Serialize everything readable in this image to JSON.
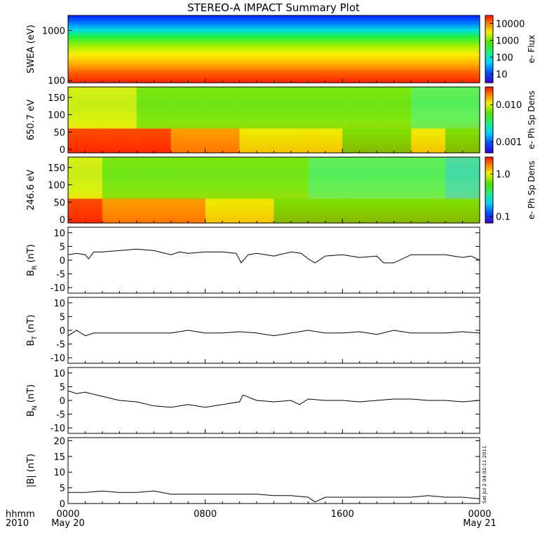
{
  "title": "STEREO-A IMPACT Summary Plot",
  "time_axis": {
    "corner_top": "hhmm",
    "corner_bottom": "2010",
    "ticks": [
      {
        "label": "0000",
        "sub": "May 20",
        "hour": 0
      },
      {
        "label": "0800",
        "sub": "",
        "hour": 8
      },
      {
        "label": "1600",
        "sub": "",
        "hour": 16
      },
      {
        "label": "0000",
        "sub": "May 21",
        "hour": 24
      }
    ],
    "range_hours": [
      0,
      24
    ]
  },
  "stamp": "Sat Jul  2 04:02:11 2011",
  "spectrogram_panels": [
    {
      "id": "swea",
      "ylabel": "SWEA (eV)",
      "ytick_labels": [
        "1000",
        "100"
      ],
      "ytick_values": [
        1000,
        100
      ],
      "yscale": "log",
      "ylim": [
        90,
        2000
      ],
      "colorbar_label": "e- Flux",
      "colorbar_ticks": [
        "10000",
        "1000",
        "100",
        "10"
      ],
      "colorbar_values": [
        10000,
        1000,
        100,
        10
      ],
      "colorbar_range": [
        3,
        30000
      ]
    },
    {
      "id": "pad650",
      "ylabel": "650.7 eV",
      "ytick_labels": [
        "150",
        "100",
        "50",
        "0"
      ],
      "ytick_values": [
        150,
        100,
        50,
        0
      ],
      "yscale": "linear",
      "ylim": [
        -10,
        180
      ],
      "colorbar_label": "e- Ph Sp Dens",
      "colorbar_ticks": [
        "0.010",
        "0.001"
      ],
      "colorbar_values": [
        0.01,
        0.001
      ],
      "colorbar_range": [
        0.0005,
        0.03
      ]
    },
    {
      "id": "pad246",
      "ylabel": "246.6 eV",
      "ytick_labels": [
        "150",
        "100",
        "50",
        "0"
      ],
      "ytick_values": [
        150,
        100,
        50,
        0
      ],
      "yscale": "linear",
      "ylim": [
        -10,
        180
      ],
      "colorbar_label": "e- Ph Sp Dens",
      "colorbar_ticks": [
        "1.0",
        "0.1"
      ],
      "colorbar_values": [
        1.0,
        0.1
      ],
      "colorbar_range": [
        0.07,
        2.5
      ]
    }
  ],
  "chart_data": [
    {
      "type": "heatmap",
      "panel": "swea",
      "ylabel": "SWEA (eV)",
      "colorbar": "e- Flux",
      "energy_profile": [
        {
          "energy_eV": 100,
          "flux": 6000
        },
        {
          "energy_eV": 200,
          "flux": 2000
        },
        {
          "energy_eV": 400,
          "flux": 400
        },
        {
          "energy_eV": 700,
          "flux": 100
        },
        {
          "energy_eV": 1000,
          "flux": 40
        },
        {
          "energy_eV": 1500,
          "flux": 8
        },
        {
          "energy_eV": 2000,
          "flux": 4
        }
      ]
    },
    {
      "type": "heatmap",
      "panel": "pad650",
      "ylabel": "650.7 eV",
      "colorbar": "e- Ph Sp Dens",
      "x_hours": [
        0,
        2,
        4,
        6,
        8,
        10,
        12,
        14,
        16,
        18,
        20,
        22,
        24
      ],
      "low_angle_density": [
        0.025,
        0.02,
        0.02,
        0.018,
        0.012,
        0.008,
        0.006,
        0.006,
        0.005,
        0.005,
        0.006,
        0.005,
        0.004
      ],
      "high_angle_density": [
        0.008,
        0.006,
        0.005,
        0.005,
        0.004,
        0.004,
        0.004,
        0.004,
        0.004,
        0.004,
        0.003,
        0.003,
        0.004
      ]
    },
    {
      "type": "heatmap",
      "panel": "pad246",
      "ylabel": "246.6 eV",
      "colorbar": "e- Ph Sp Dens",
      "x_hours": [
        0,
        2,
        4,
        6,
        8,
        10,
        12,
        14,
        16,
        18,
        20,
        22,
        24
      ],
      "low_angle_density": [
        1.8,
        1.5,
        1.4,
        1.3,
        0.8,
        0.6,
        0.5,
        0.5,
        0.45,
        0.45,
        0.5,
        0.45,
        0.4
      ],
      "high_angle_density": [
        0.6,
        0.45,
        0.4,
        0.4,
        0.35,
        0.35,
        0.35,
        0.33,
        0.33,
        0.33,
        0.3,
        0.2,
        0.3
      ]
    },
    {
      "type": "line",
      "panel": "br",
      "ylabel_main": "B",
      "ylabel_sub": "R",
      "ylabel_unit": "(nT)",
      "ylim": [
        -12,
        12
      ],
      "yticks": [
        10,
        5,
        0,
        -5,
        -10
      ],
      "x_hours": [
        0,
        0.5,
        1,
        1.2,
        1.5,
        2,
        3,
        4,
        5,
        6,
        6.5,
        7,
        8,
        9,
        9.8,
        10.1,
        10.5,
        11,
        12,
        13,
        13.6,
        14,
        14.4,
        15,
        16,
        17,
        18,
        18.4,
        19,
        20,
        21,
        22,
        23,
        23.5,
        24
      ],
      "values": [
        2,
        2.5,
        2,
        0.5,
        3,
        3,
        3.5,
        4,
        3.5,
        2,
        3,
        2.5,
        3,
        3,
        2.5,
        -1,
        2,
        2.5,
        1.5,
        3,
        2.5,
        0.5,
        -1,
        1.5,
        2,
        1,
        1.5,
        -1,
        -1,
        2,
        2,
        2,
        1,
        1.5,
        0
      ]
    },
    {
      "type": "line",
      "panel": "bt",
      "ylabel_main": "B",
      "ylabel_sub": "T",
      "ylabel_unit": "(nT)",
      "ylim": [
        -12,
        12
      ],
      "yticks": [
        10,
        5,
        0,
        -5,
        -10
      ],
      "x_hours": [
        0,
        0.5,
        1,
        1.5,
        2,
        3,
        4,
        5,
        6,
        7,
        8,
        9,
        10,
        11,
        12,
        13,
        14,
        15,
        16,
        17,
        18,
        19,
        20,
        21,
        22,
        23,
        24
      ],
      "values": [
        -2,
        0,
        -2,
        -1,
        -1,
        -1,
        -1,
        -1,
        -1,
        0,
        -1,
        -1,
        -0.5,
        -1,
        -2,
        -1,
        0,
        -1,
        -1,
        -0.5,
        -1.5,
        0,
        -1,
        -1,
        -1,
        -0.5,
        -1
      ]
    },
    {
      "type": "line",
      "panel": "bn",
      "ylabel_main": "B",
      "ylabel_sub": "N",
      "ylabel_unit": "(nT)",
      "ylim": [
        -12,
        12
      ],
      "yticks": [
        10,
        5,
        0,
        -5,
        -10
      ],
      "x_hours": [
        0,
        0.5,
        1,
        2,
        3,
        4,
        5,
        6,
        7,
        8,
        9,
        10,
        10.2,
        11,
        12,
        13,
        13.5,
        14,
        15,
        16,
        17,
        18,
        19,
        20,
        21,
        22,
        23,
        24
      ],
      "values": [
        3.5,
        2.5,
        3,
        1.5,
        0,
        -0.5,
        -2,
        -2.5,
        -1.5,
        -2.5,
        -1.5,
        -0.5,
        2,
        0,
        -0.5,
        0,
        -1.5,
        0.5,
        0,
        0,
        -0.5,
        0,
        0.5,
        0.5,
        0,
        0,
        -0.5,
        0
      ]
    },
    {
      "type": "line",
      "panel": "bmag",
      "ylabel_main": "|B| (nT)",
      "ylim": [
        0,
        21
      ],
      "yticks": [
        20,
        15,
        10,
        5,
        0
      ],
      "x_hours": [
        0,
        1,
        2,
        3,
        4,
        5,
        6,
        7,
        8,
        9,
        10,
        11,
        12,
        13,
        14,
        14.4,
        15,
        16,
        17,
        18,
        19,
        20,
        21,
        22,
        23,
        24
      ],
      "values": [
        3.5,
        3.5,
        4,
        3.5,
        3.5,
        4,
        3,
        3,
        3,
        3,
        3,
        3,
        2.5,
        2.5,
        2,
        0.5,
        2,
        2,
        2,
        2,
        2,
        2,
        2.5,
        2,
        2,
        1.5
      ]
    }
  ]
}
